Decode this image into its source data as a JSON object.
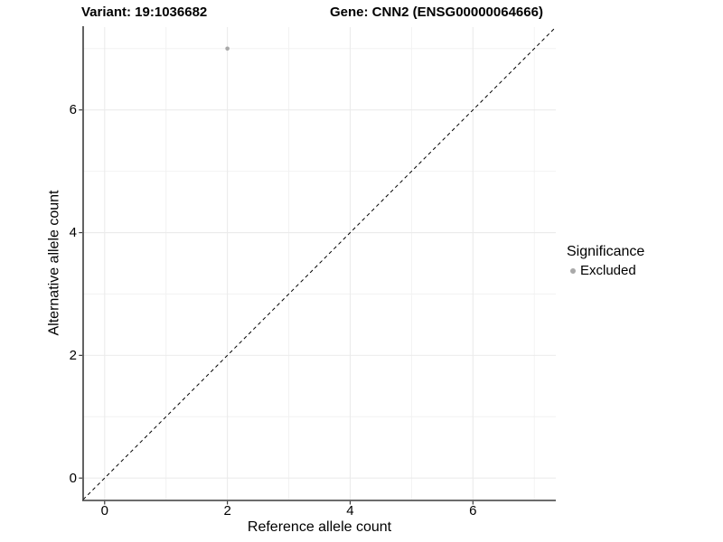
{
  "header": {
    "variant_title": "Variant: 19:1036682",
    "gene_title": "Gene: CNN2 (ENSG00000064666)"
  },
  "chart_data": {
    "type": "scatter",
    "title": "Variant: 19:1036682 — Gene: CNN2 (ENSG00000064666)",
    "xlabel": "Reference allele count",
    "ylabel": "Alternative allele count",
    "xlim": [
      -0.35,
      7.35
    ],
    "ylim": [
      -0.35,
      7.35
    ],
    "x_major_ticks": [
      0,
      2,
      4,
      6
    ],
    "y_major_ticks": [
      0,
      2,
      4,
      6
    ],
    "minor_gridlines": [
      1,
      3,
      5,
      7
    ],
    "grid": "on",
    "background_color": "#ffffff",
    "major_grid_color": "#ebebeb",
    "minor_grid_color": "#f2f2f2",
    "axis_line_color": "#3c3c3c",
    "identity_line": {
      "style": "dashed",
      "color": "#000000",
      "from": [
        -0.35,
        -0.35
      ],
      "to": [
        7.35,
        7.35
      ]
    },
    "series": [
      {
        "name": "Excluded",
        "color": "#a9a9a9",
        "point_radius": 2.3,
        "points": [
          [
            2,
            7
          ]
        ]
      }
    ],
    "legend": {
      "title": "Significance",
      "position": "right",
      "entries": [
        {
          "label": "Excluded",
          "color": "#a9a9a9"
        }
      ]
    }
  }
}
